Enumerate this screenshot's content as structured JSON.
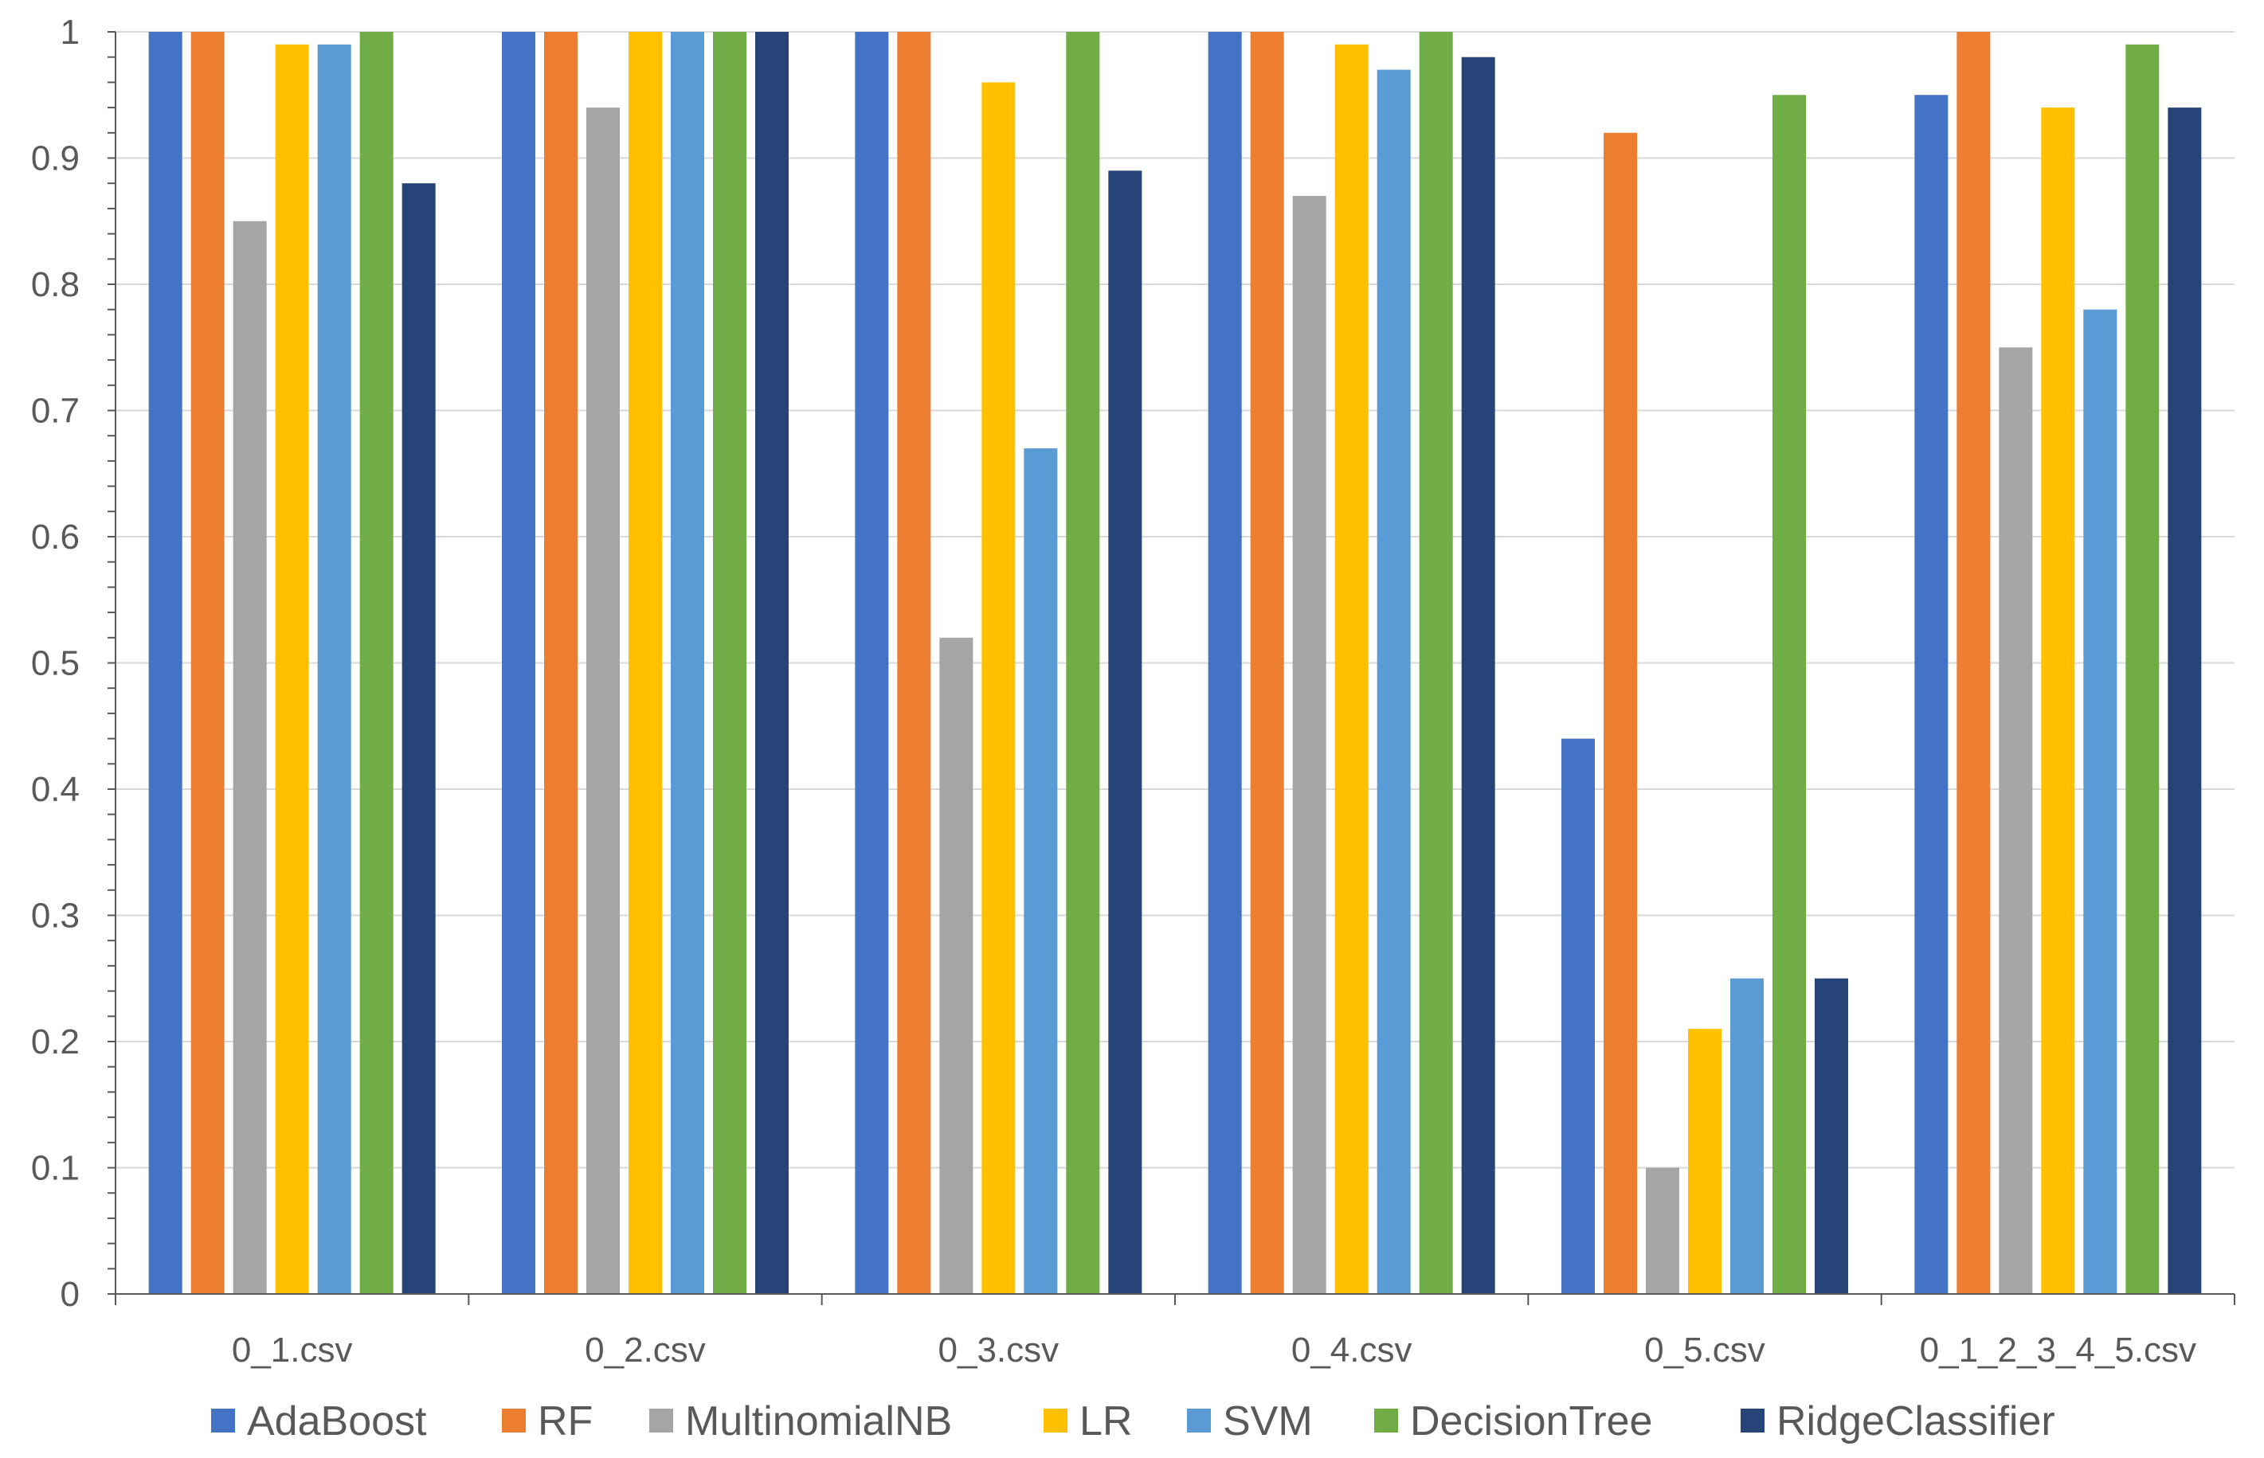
{
  "chart_data": {
    "type": "bar",
    "title": "",
    "xlabel": "",
    "ylabel": "",
    "ylim": [
      0,
      1
    ],
    "yticks": [
      "0",
      "0.1",
      "0.2",
      "0.3",
      "0.4",
      "0.5",
      "0.6",
      "0.7",
      "0.8",
      "0.9",
      "1"
    ],
    "grid": true,
    "legend_position": "bottom",
    "categories": [
      "0_1.csv",
      "0_2.csv",
      "0_3.csv",
      "0_4.csv",
      "0_5.csv",
      "0_1_2_3_4_5.csv"
    ],
    "series": [
      {
        "name": "AdaBoost",
        "color": "#4472C4",
        "values": [
          1,
          1,
          1,
          1,
          0.44,
          0.95
        ]
      },
      {
        "name": "RF",
        "color": "#ED7D31",
        "values": [
          1,
          1,
          1,
          1,
          0.92,
          1
        ]
      },
      {
        "name": "MultinomialNB",
        "color": "#A5A5A5",
        "values": [
          0.85,
          0.94,
          0.52,
          0.87,
          0.1,
          0.75
        ]
      },
      {
        "name": "LR",
        "color": "#FFC000",
        "values": [
          0.99,
          1,
          0.96,
          0.99,
          0.21,
          0.94
        ]
      },
      {
        "name": "SVM",
        "color": "#5B9BD5",
        "values": [
          0.99,
          1,
          0.67,
          0.97,
          0.25,
          0.78
        ]
      },
      {
        "name": "DecisionTree",
        "color": "#70AD47",
        "values": [
          1,
          1,
          1,
          1,
          0.95,
          0.99
        ]
      },
      {
        "name": "RidgeClassifier",
        "color": "#264478",
        "values": [
          0.88,
          1,
          0.89,
          0.98,
          0.25,
          0.94
        ]
      }
    ]
  }
}
